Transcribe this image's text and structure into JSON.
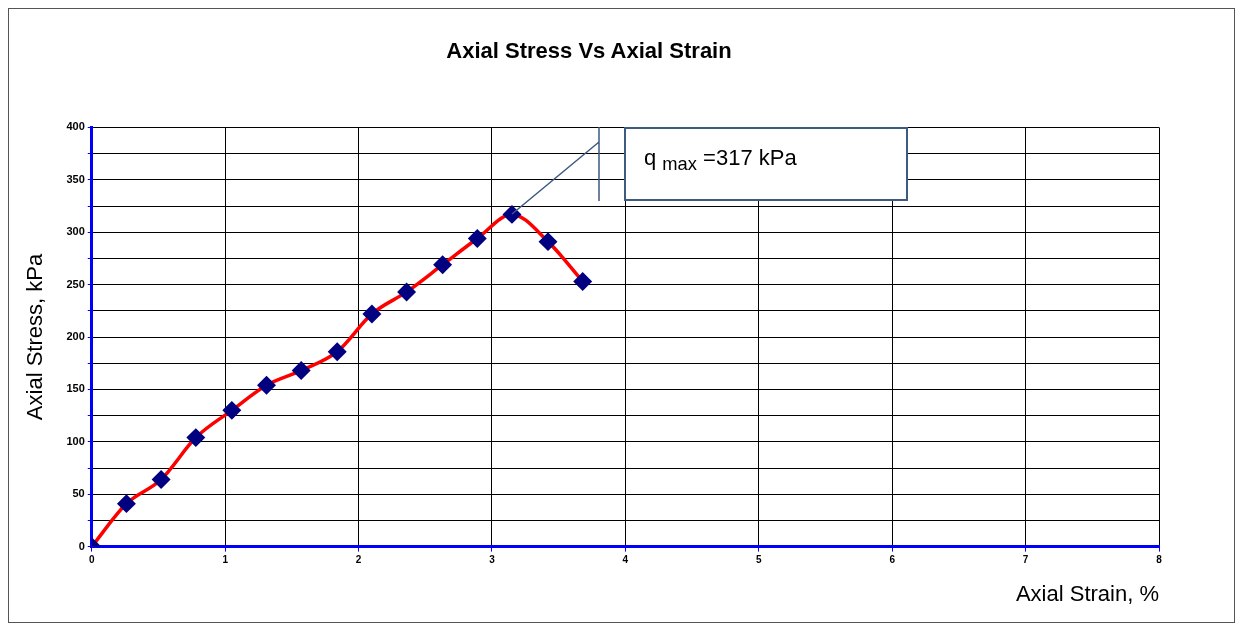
{
  "chart_data": {
    "type": "line",
    "title": "Axial Stress Vs Axial Strain",
    "xlabel": "Axial Strain, %",
    "ylabel": "Axial Stress, kPa",
    "series": [
      {
        "color": "#ff0000",
        "colors": [
          "#000080",
          "#000080",
          "#000080",
          "#000080",
          "#000080",
          "#000080",
          "#000080",
          "#000080",
          "#000080",
          "#000080",
          "#000080",
          "#000080",
          "#000080",
          "#000080",
          "#000080"
        ],
        "x": [
          0,
          0.26,
          0.52,
          0.78,
          1.05,
          1.31,
          1.57,
          1.84,
          2.1,
          2.36,
          2.63,
          2.89,
          3.15,
          3.42,
          3.68
        ],
        "values": [
          0,
          41,
          64,
          104,
          130,
          154,
          168,
          186,
          222,
          243,
          269,
          294,
          317,
          291,
          253
        ]
      }
    ],
    "xlim": [
      0,
      8
    ],
    "xticks": [
      0,
      1,
      2,
      3,
      4,
      5,
      6,
      7,
      8
    ],
    "ylim": [
      0,
      400
    ],
    "yticks": [
      0,
      {
        "value": 25,
        "label": null
      },
      50,
      {
        "value": 75,
        "label": null
      },
      100,
      {
        "value": 125,
        "label": null
      },
      150,
      {
        "value": 175,
        "label": null
      },
      200,
      {
        "value": 225,
        "label": null
      },
      250,
      {
        "value": 275,
        "label": null
      },
      300,
      {
        "value": 325,
        "label": null
      },
      350,
      {
        "value": 375,
        "label": null
      },
      400
    ],
    "annotations": [
      "q $_{max}$ =317 kPa"
    ],
    "grid": true,
    "legend": false,
    "marker": "diamond",
    "line_style": "solid"
  }
}
